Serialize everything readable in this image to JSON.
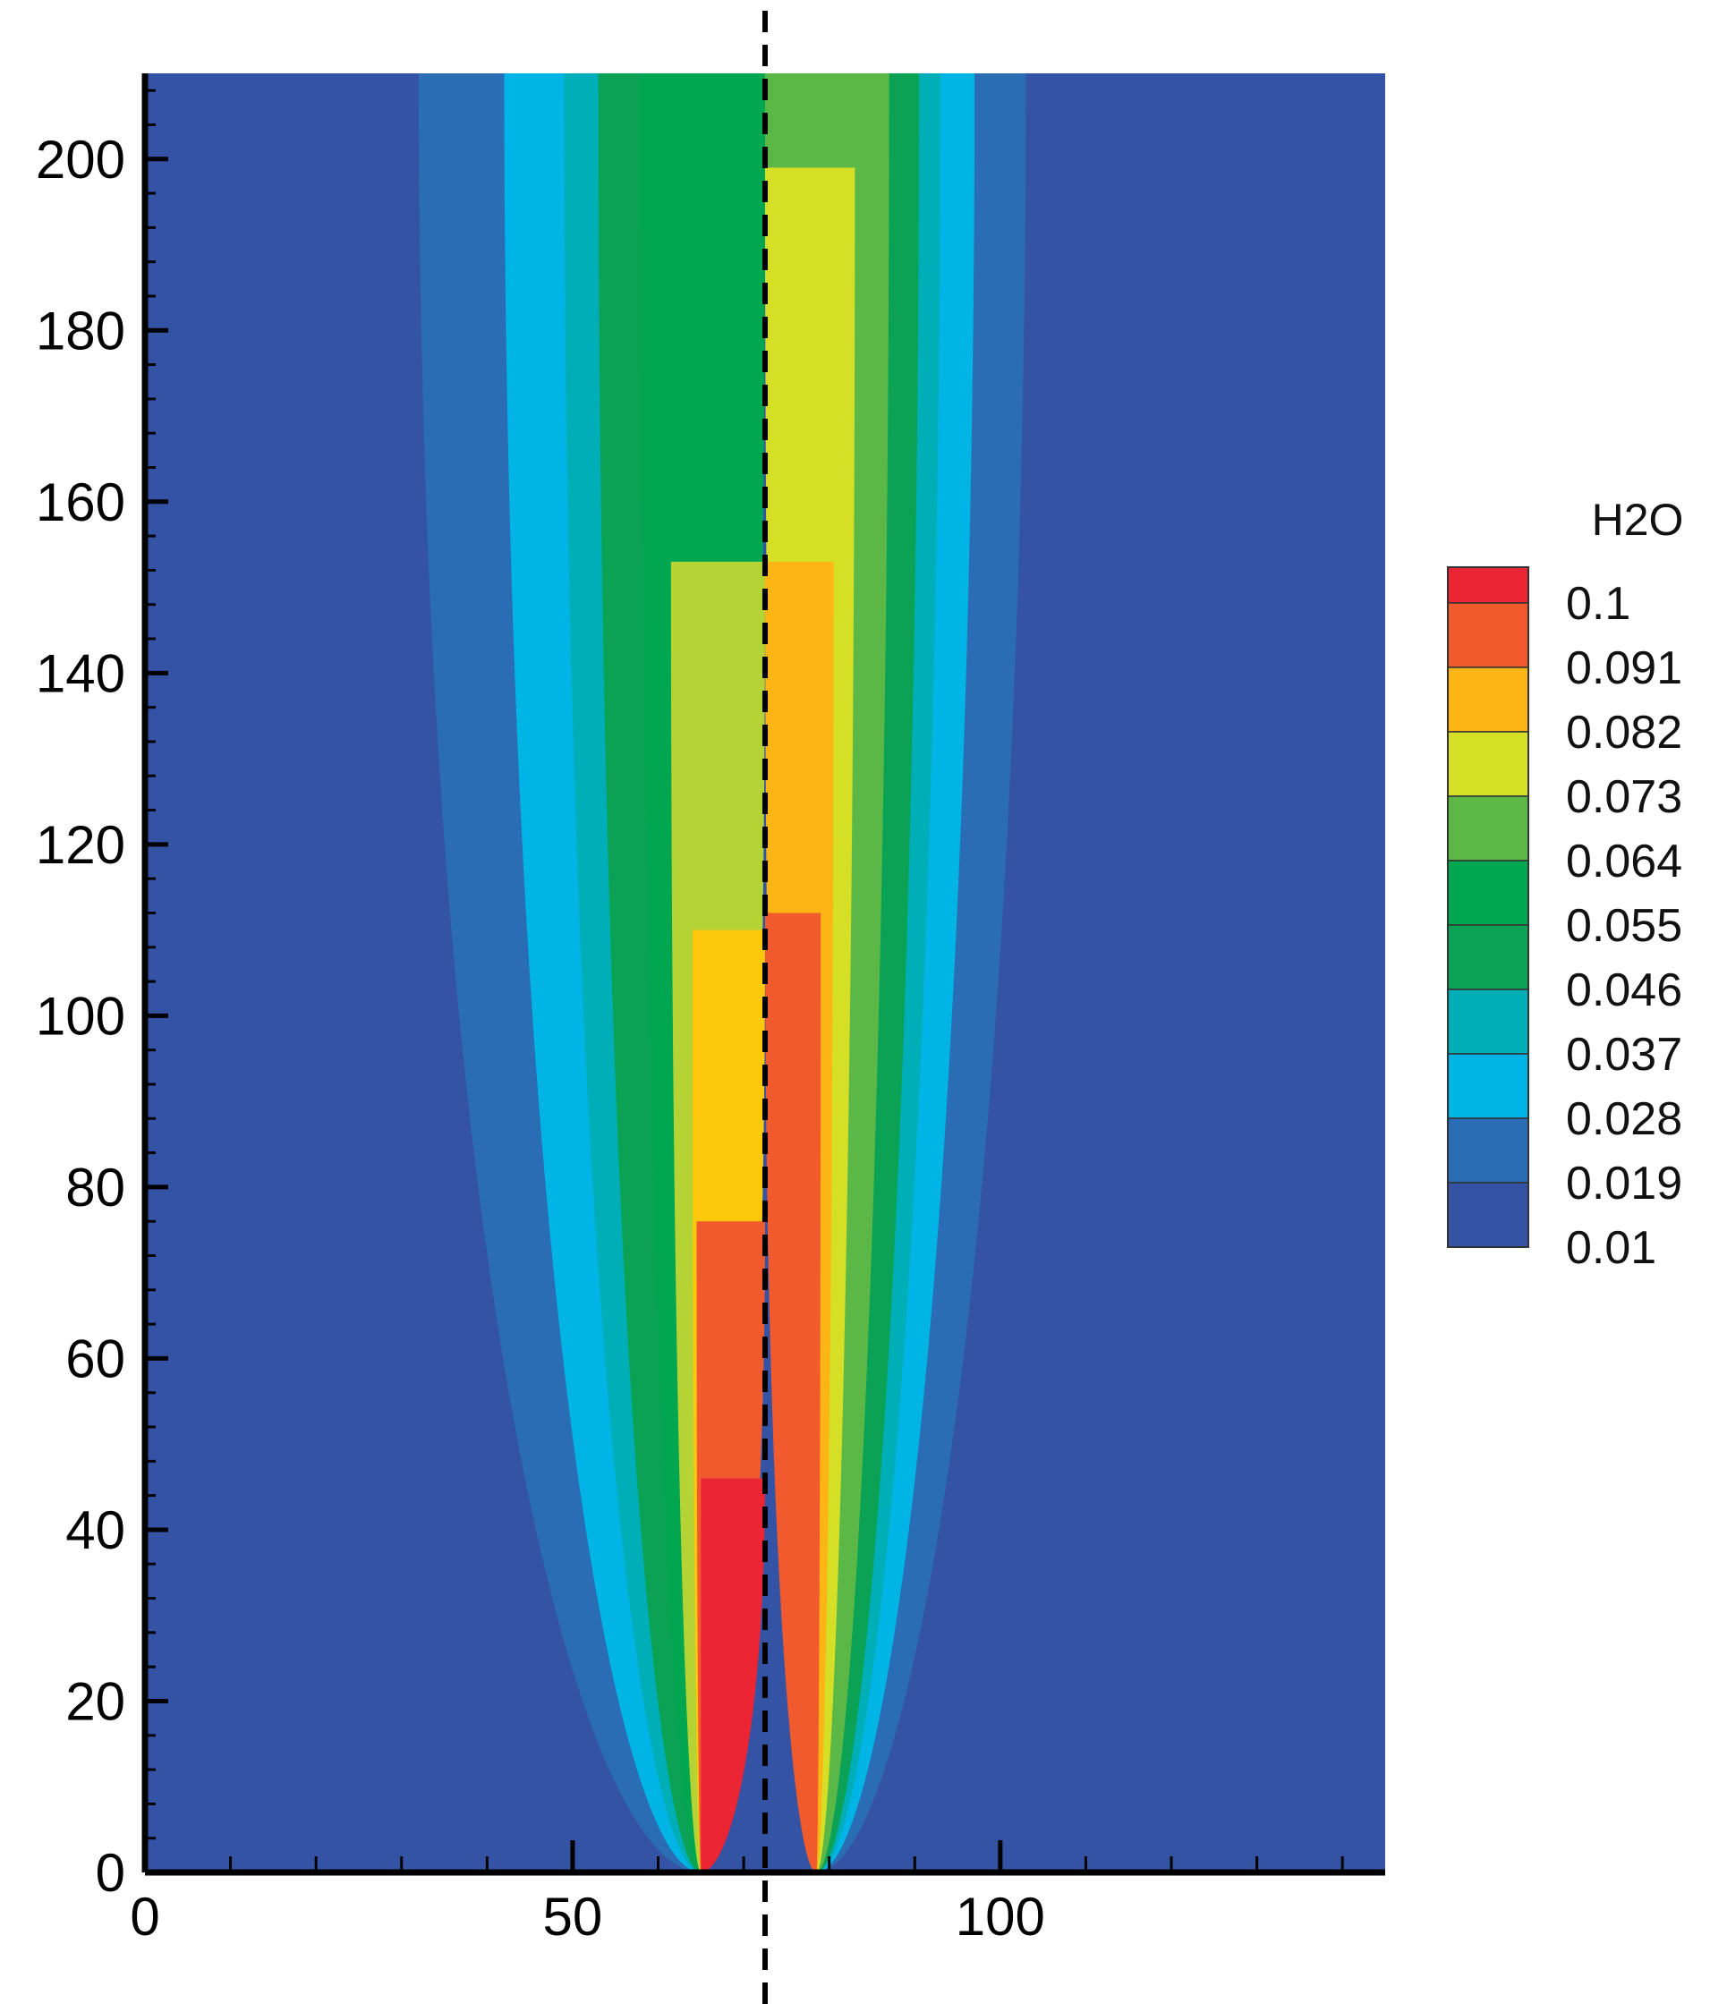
{
  "chart_data": {
    "type": "heatmap",
    "title": "",
    "xlabel": "",
    "ylabel": "",
    "xlim": [
      0,
      145
    ],
    "ylim": [
      0,
      210
    ],
    "x_ticks": [
      "0",
      "50",
      "100"
    ],
    "x_tick_values": [
      0,
      50,
      100
    ],
    "y_ticks": [
      "0",
      "20",
      "40",
      "60",
      "80",
      "100",
      "120",
      "140",
      "160",
      "180",
      "200"
    ],
    "y_tick_values": [
      0,
      20,
      40,
      60,
      80,
      100,
      120,
      140,
      160,
      180,
      200
    ],
    "dashed_line_x": 72.5,
    "legend": {
      "title": "H2O",
      "placement": "right",
      "levels": [
        "0.1",
        "0.091",
        "0.082",
        "0.073",
        "0.064",
        "0.055",
        "0.046",
        "0.037",
        "0.028",
        "0.019",
        "0.01"
      ],
      "colors": [
        "#ec2535",
        "#f05a2d",
        "#fdb515",
        "#d4df26",
        "#5bb847",
        "#00a650",
        "#0ba255",
        "#00aeb8",
        "#00b4e6",
        "#2a6db4",
        "#3453a5"
      ]
    },
    "background_color": "#3453a5",
    "plumes": [
      {
        "name": "left",
        "bands": [
          {
            "level": "0.019",
            "color": "#2a6db4",
            "x0": 65,
            "top": 210,
            "left_x": 32,
            "right_x": 72.5
          },
          {
            "level": "0.028",
            "color": "#00b4e6",
            "x0": 65,
            "top": 210,
            "left_x": 42,
            "right_x": 72.5
          },
          {
            "level": "0.037",
            "color": "#00aeb8",
            "x0": 65,
            "top": 210,
            "left_x": 49,
            "right_x": 72.5
          },
          {
            "level": "0.046",
            "color": "#0ba255",
            "x0": 65,
            "top": 210,
            "left_x": 53,
            "right_x": 72.5
          },
          {
            "level": "0.055",
            "color": "#00a650",
            "x0": 65,
            "top": 210,
            "left_x": 58,
            "right_x": 72.5
          },
          {
            "level": "0.073",
            "color": "#b5d334",
            "x0": 65,
            "top": 153,
            "left_x": 61.5,
            "right_x": 72.5
          },
          {
            "level": "0.082",
            "color": "#fdc70c",
            "x0": 65,
            "top": 110,
            "left_x": 64,
            "right_x": 72.5
          },
          {
            "level": "0.091",
            "color": "#f05a2d",
            "x0": 65,
            "top": 76,
            "left_x": 64.5,
            "right_x": 72.5
          },
          {
            "level": "0.1",
            "color": "#ec2535",
            "x0": 65,
            "top": 46,
            "left_x": 65,
            "right_x": 72.5
          }
        ]
      },
      {
        "name": "right",
        "bands": [
          {
            "level": "0.019",
            "color": "#2a6db4",
            "x0": 78.5,
            "top": 210,
            "left_x": 72.5,
            "right_x": 103
          },
          {
            "level": "0.028",
            "color": "#00b4e6",
            "x0": 78.5,
            "top": 210,
            "left_x": 72.5,
            "right_x": 97
          },
          {
            "level": "0.037",
            "color": "#00aeb8",
            "x0": 78.5,
            "top": 210,
            "left_x": 72.5,
            "right_x": 93
          },
          {
            "level": "0.046",
            "color": "#0ba255",
            "x0": 78.5,
            "top": 210,
            "left_x": 72.5,
            "right_x": 90.5
          },
          {
            "level": "0.064",
            "color": "#5bb847",
            "x0": 78.5,
            "top": 210,
            "left_x": 72.5,
            "right_x": 87
          },
          {
            "level": "0.073",
            "color": "#d4df26",
            "x0": 78.5,
            "top": 199,
            "left_x": 72.5,
            "right_x": 83
          },
          {
            "level": "0.082",
            "color": "#fdb515",
            "x0": 78.5,
            "top": 153,
            "left_x": 72.5,
            "right_x": 80.5
          },
          {
            "level": "0.091",
            "color": "#f05a2d",
            "x0": 78.5,
            "top": 112,
            "left_x": 72.5,
            "right_x": 79
          }
        ]
      }
    ]
  }
}
